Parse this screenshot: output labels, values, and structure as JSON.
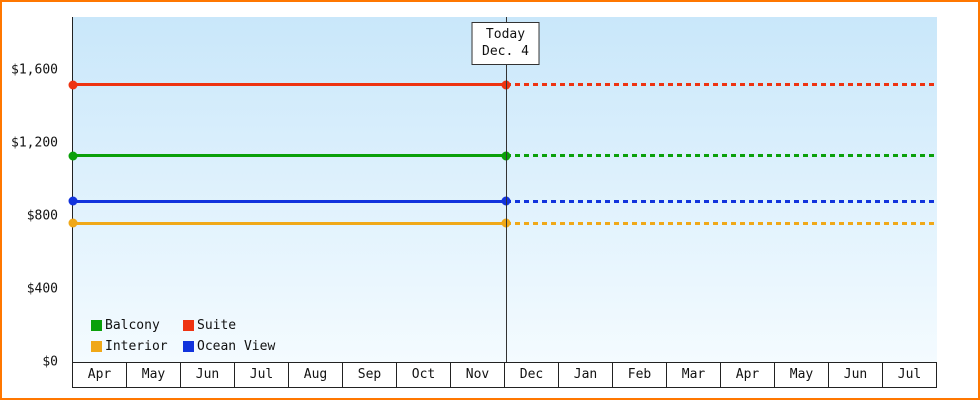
{
  "colors": {
    "frame_border": "#ff7700",
    "axis": "#222222",
    "plot_bg_top": "#c9e7fa",
    "plot_bg_bottom": "#f4fbff",
    "today_line": "#333333"
  },
  "chart_data": {
    "type": "line",
    "months": [
      "Apr",
      "May",
      "Jun",
      "Jul",
      "Aug",
      "Sep",
      "Oct",
      "Nov",
      "Dec",
      "Jan",
      "Feb",
      "Mar",
      "Apr",
      "May",
      "Jun",
      "Jul"
    ],
    "y_ticks": [
      {
        "label": "$0",
        "value": 0
      },
      {
        "label": "$400",
        "value": 400
      },
      {
        "label": "$800",
        "value": 800
      },
      {
        "label": "$1,200",
        "value": 1200
      },
      {
        "label": "$1,600",
        "value": 1600
      }
    ],
    "y_axis_max": 1600,
    "grid": false,
    "today": {
      "line1": "Today",
      "line2": "Dec. 4",
      "month_index": 8
    },
    "line_style": {
      "before_today": "solid",
      "after_today": "dashed"
    },
    "series": [
      {
        "name": "Suite",
        "color": "#ee3311",
        "value": 1520
      },
      {
        "name": "Balcony",
        "color": "#0aa00a",
        "value": 1130
      },
      {
        "name": "Ocean View",
        "color": "#1133dd",
        "value": 880
      },
      {
        "name": "Interior",
        "color": "#f0a818",
        "value": 760
      }
    ],
    "legend": [
      {
        "label": "Balcony",
        "color": "#0aa00a"
      },
      {
        "label": "Suite",
        "color": "#ee3311"
      },
      {
        "label": "Interior",
        "color": "#f0a818"
      },
      {
        "label": "Ocean View",
        "color": "#1133dd"
      }
    ],
    "legend_position": "bottom-left"
  }
}
